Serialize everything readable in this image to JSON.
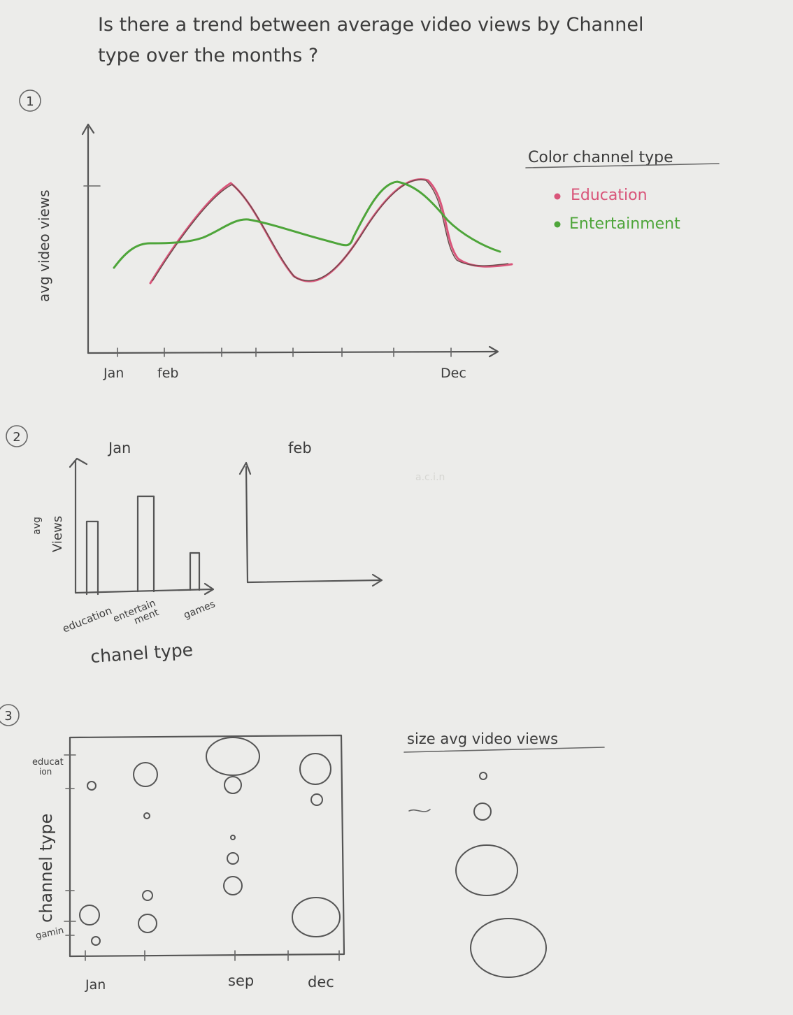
{
  "question": {
    "line1": "Is there a trend between average video views by Channel",
    "line2": "type over the months ?"
  },
  "sketch1": {
    "number": "1",
    "ylabel": "avg video views",
    "x_ticks": [
      "Jan",
      "feb",
      "Dec"
    ],
    "legend_title": "Color channel type",
    "legend_items": [
      {
        "label": "Education",
        "color": "#d9557a"
      },
      {
        "label": "Entertainment",
        "color": "#4ea53a"
      }
    ]
  },
  "sketch2": {
    "number": "2",
    "ylabel_line1": "avg",
    "ylabel_line2": "Views",
    "panel1_title": "Jan",
    "panel2_title": "feb",
    "categories": [
      "education",
      "entertain",
      "ment",
      "games"
    ],
    "xlabel": "chanel type",
    "faint_text": "a.c.i.n"
  },
  "sketch3": {
    "number": "3",
    "ylabel": "channel type",
    "y_ticks": [
      "educat",
      "ion",
      "gamin"
    ],
    "x_ticks": [
      "Jan",
      "sep",
      "dec"
    ],
    "size_legend_title": "size avg video views"
  },
  "colors": {
    "education": "#d9557a",
    "entertainment": "#4ea53a",
    "pencil": "#555555",
    "paper": "#ececea"
  }
}
